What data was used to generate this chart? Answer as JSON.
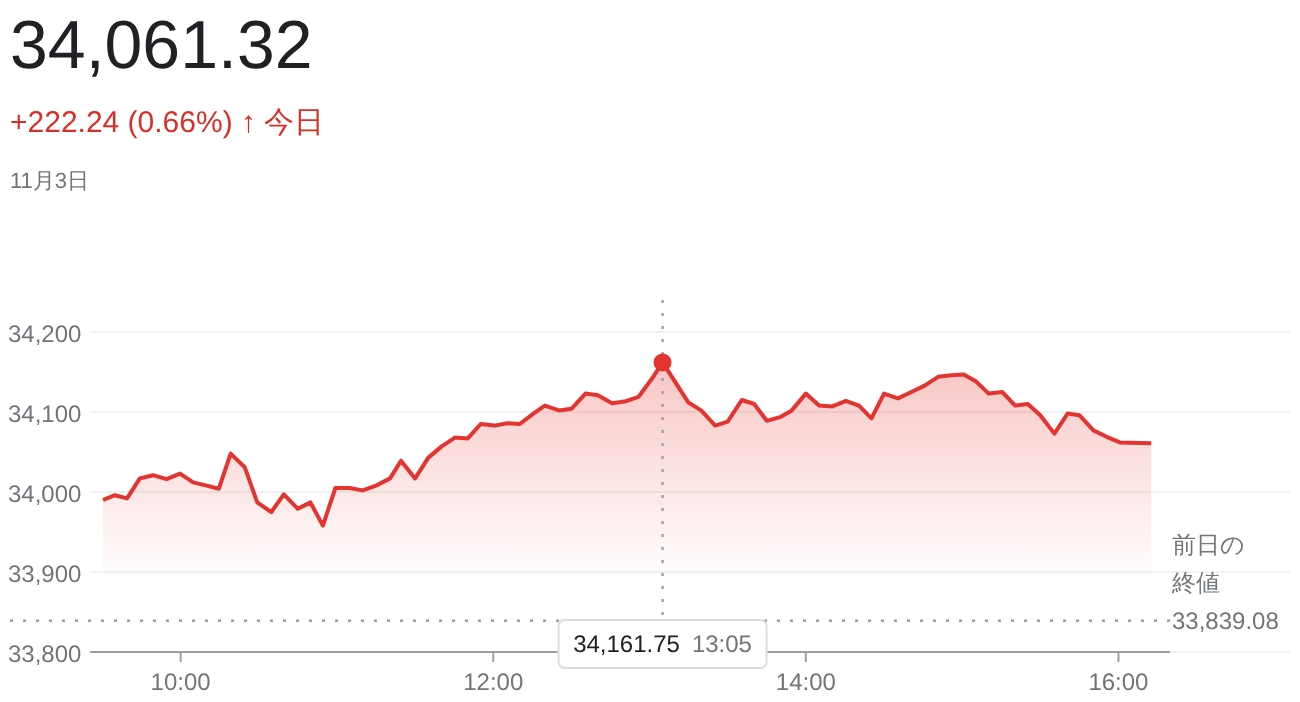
{
  "chart_data": {
    "type": "area",
    "title": "34,061.32",
    "subtitle": "+222.24 (0.66%) ↑ 今日",
    "annotations": [
      "11月3日",
      "33,839.08"
    ],
    "series": [
      {
        "color": "#e3342f",
        "x": [
          9.503,
          9.58,
          9.657,
          9.739,
          9.824,
          9.91,
          9.996,
          10.08,
          10.167,
          10.244,
          10.32,
          10.41,
          10.49,
          10.58,
          10.66,
          10.75,
          10.83,
          10.91,
          10.99,
          11.08,
          11.165,
          11.25,
          11.34,
          11.41,
          11.5,
          11.585,
          11.67,
          11.755,
          11.837,
          11.92,
          12.008,
          12.09,
          12.17,
          12.257,
          12.33,
          12.42,
          12.5,
          12.59,
          12.67,
          12.76,
          12.84,
          12.93,
          13.02,
          13.0833,
          13.248,
          13.33,
          13.42,
          13.5,
          13.59,
          13.67,
          13.75,
          13.84,
          13.91,
          14.0,
          14.085,
          14.17,
          14.256,
          14.34,
          14.42,
          14.5,
          14.59,
          14.675,
          14.76,
          14.846,
          14.93,
          15.01,
          15.09,
          15.17,
          15.256,
          15.34,
          15.42,
          15.5,
          15.59,
          15.675,
          15.75,
          15.84,
          15.925,
          16.01,
          16.21
        ],
        "values": [
          33990,
          33996,
          33992,
          34017,
          34021,
          34016,
          34023,
          34012,
          34008,
          34004,
          34048,
          34031,
          33987,
          33975,
          33997,
          33979,
          33987,
          33958,
          34005,
          34005,
          34002,
          34008,
          34017,
          34039,
          34017,
          34043,
          34057,
          34068,
          34067,
          34085,
          34083,
          34086,
          34085,
          34098,
          34108,
          34102,
          34104,
          34123,
          34121,
          34111,
          34113,
          34119,
          34143,
          34162,
          34112,
          34102,
          34083,
          34088,
          34115,
          34110,
          34089,
          34094,
          34102,
          34123,
          34108,
          34107,
          34114,
          34108,
          34092,
          34123,
          34117,
          34125,
          34133,
          34144,
          34146,
          34147,
          34138,
          34123,
          34125,
          34108,
          34110,
          34096,
          34073,
          34098,
          34096,
          34077,
          34069,
          34062,
          34061
        ]
      }
    ],
    "xlim": [
      9.42,
      16.33
    ],
    "xticks": [
      {
        "value": 10,
        "label": "10:00"
      },
      {
        "value": 12,
        "label": "12:00"
      },
      {
        "value": 14,
        "label": "14:00"
      },
      {
        "value": 16,
        "label": "16:00"
      }
    ],
    "ylim": [
      33800,
      34240
    ],
    "yticks": [
      {
        "value": 33800,
        "label": "33,800"
      },
      {
        "value": 33900,
        "label": "33,900"
      },
      {
        "value": 34000,
        "label": "34,000"
      },
      {
        "value": 34100,
        "label": "34,100"
      },
      {
        "value": 34200,
        "label": "34,200"
      }
    ],
    "ref_lines": [
      {
        "axis": "y",
        "value": 33839.08,
        "label": "前日の終値",
        "line_style": "dotted"
      },
      {
        "axis": "x",
        "value": 13.0833,
        "label": "34,161.75 13:05",
        "line_style": "dotted"
      }
    ],
    "grid": "y"
  }
}
